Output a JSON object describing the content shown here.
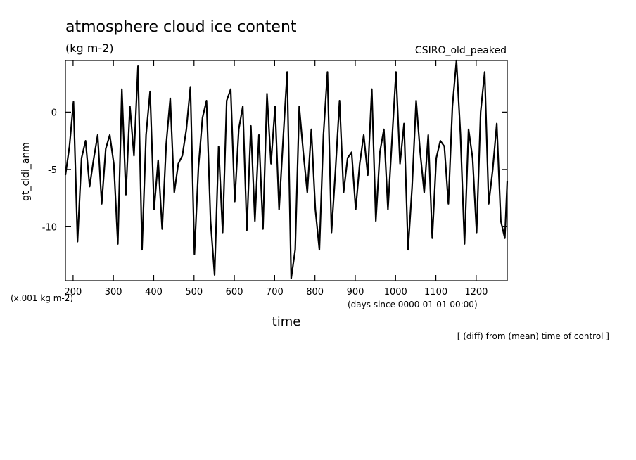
{
  "chart_data": {
    "type": "line",
    "title": "atmosphere cloud ice content",
    "units": "(kg m-2)",
    "model": "CSIRO_old_peaked",
    "xlabel": "time",
    "ylabel": "gt_cldi_anm",
    "x_units": "(days since 0000-01-01 00:00)",
    "y_units": "(x.001 kg m-2)",
    "note": "[ (diff) from (mean) time of control ]",
    "xlim": [
      181,
      1277
    ],
    "ylim": [
      -14.7,
      4.5
    ],
    "x_ticks": [
      200,
      300,
      400,
      500,
      600,
      700,
      800,
      900,
      1000,
      1100,
      1200
    ],
    "y_ticks": [
      0,
      -5,
      -10
    ],
    "x_tick_labels": [
      "200",
      "300",
      "400",
      "500",
      "600",
      "700",
      "800",
      "900",
      "1000",
      "1100",
      "1200"
    ],
    "y_tick_labels": [
      "0",
      "-5",
      "-10"
    ],
    "grid": false,
    "series": [
      {
        "color": "#000000",
        "x": [
          181,
          191,
          201,
          211,
          221,
          231,
          241,
          251,
          261,
          271,
          281,
          291,
          301,
          311,
          321,
          331,
          341,
          351,
          361,
          371,
          381,
          391,
          401,
          411,
          421,
          431,
          441,
          451,
          461,
          471,
          481,
          491,
          501,
          511,
          521,
          531,
          541,
          551,
          561,
          571,
          581,
          591,
          601,
          611,
          621,
          631,
          641,
          651,
          661,
          671,
          681,
          691,
          701,
          711,
          721,
          731,
          741,
          751,
          761,
          771,
          781,
          791,
          801,
          811,
          821,
          831,
          841,
          851,
          861,
          871,
          881,
          891,
          901,
          911,
          921,
          931,
          941,
          951,
          961,
          971,
          981,
          991,
          1001,
          1011,
          1021,
          1031,
          1041,
          1051,
          1061,
          1071,
          1081,
          1091,
          1101,
          1111,
          1121,
          1131,
          1141,
          1151,
          1161,
          1171,
          1181,
          1191,
          1201,
          1211,
          1221,
          1231,
          1241,
          1251,
          1261,
          1271,
          1277
        ],
        "y": [
          -5.5,
          -3.0,
          0.9,
          -11.3,
          -4.0,
          -2.5,
          -6.5,
          -4.1,
          -2.0,
          -8.0,
          -3.2,
          -2.0,
          -4.5,
          -11.5,
          2.0,
          -7.2,
          0.5,
          -3.8,
          4.0,
          -12.0,
          -2.0,
          1.8,
          -8.5,
          -4.2,
          -10.2,
          -2.8,
          1.2,
          -7.0,
          -4.5,
          -3.8,
          -1.5,
          2.2,
          -12.4,
          -4.8,
          -0.5,
          1.0,
          -9.5,
          -14.2,
          -3.0,
          -10.5,
          1.0,
          2.0,
          -7.8,
          -1.5,
          0.5,
          -10.3,
          -1.2,
          -9.5,
          -2.0,
          -10.2,
          1.6,
          -4.5,
          0.5,
          -8.5,
          -2.4,
          3.5,
          -14.5,
          -12.0,
          0.5,
          -3.5,
          -7.0,
          -1.5,
          -8.5,
          -12.0,
          -2.0,
          3.5,
          -10.5,
          -5.0,
          1.0,
          -7.0,
          -4.0,
          -3.5,
          -8.5,
          -4.5,
          -2.0,
          -5.5,
          2.0,
          -9.5,
          -3.5,
          -1.5,
          -8.5,
          -2.5,
          3.5,
          -4.5,
          -1.0,
          -12.0,
          -6.5,
          1.0,
          -3.5,
          -7.0,
          -2.0,
          -11.0,
          -4.0,
          -2.5,
          -3.0,
          -8.0,
          0.5,
          4.5,
          -2.0,
          -11.5,
          -1.5,
          -4.0,
          -10.5,
          0.0,
          3.5,
          -8.0,
          -5.0,
          -1.0,
          -9.5,
          -11.0,
          -6.0
        ]
      }
    ]
  }
}
